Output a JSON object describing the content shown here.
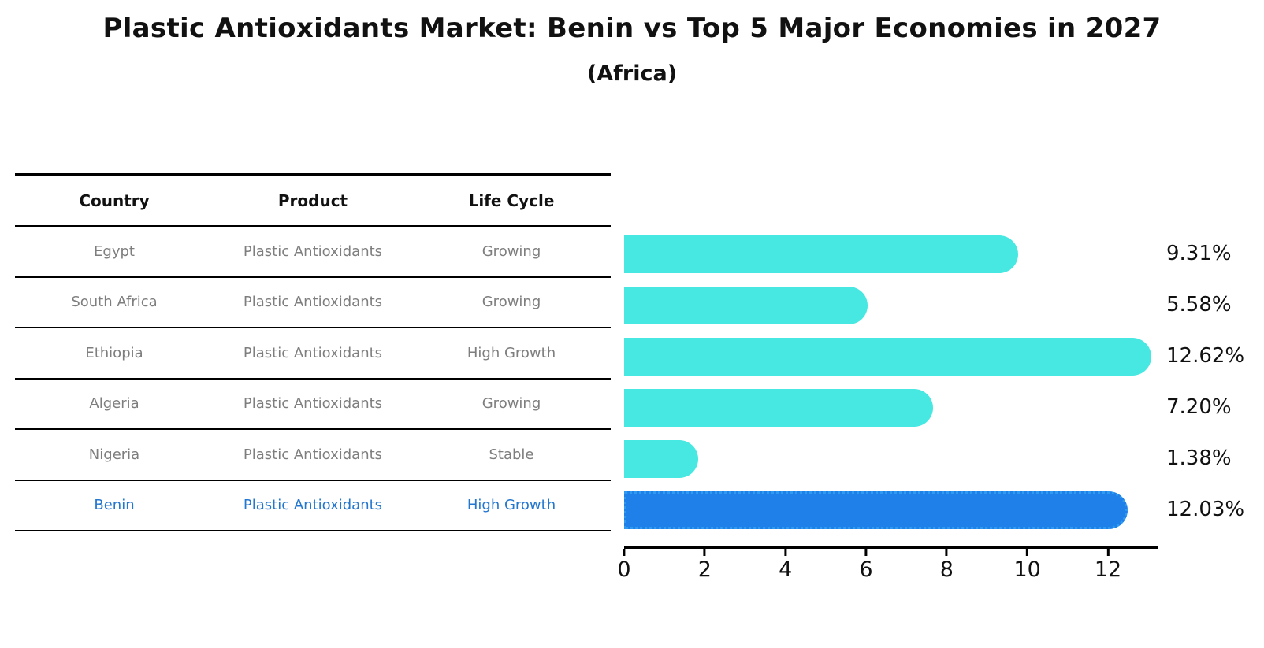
{
  "title": "Plastic Antioxidants Market: Benin vs Top 5 Major Economies in 2027",
  "subtitle": "(Africa)",
  "table": {
    "headers": [
      "Country",
      "Product",
      "Life Cycle"
    ],
    "rows": [
      {
        "country": "Egypt",
        "product": "Plastic Antioxidants",
        "life_cycle": "Growing",
        "highlight": false
      },
      {
        "country": "South Africa",
        "product": "Plastic Antioxidants",
        "life_cycle": "Growing",
        "highlight": false
      },
      {
        "country": "Ethiopia",
        "product": "Plastic Antioxidants",
        "life_cycle": "High Growth",
        "highlight": false
      },
      {
        "country": "Algeria",
        "product": "Plastic Antioxidants",
        "life_cycle": "Growing",
        "highlight": false
      },
      {
        "country": "Nigeria",
        "product": "Plastic Antioxidants",
        "life_cycle": "Stable",
        "highlight": false
      },
      {
        "country": "Benin",
        "product": "Plastic Antioxidants",
        "life_cycle": "High Growth",
        "highlight": true
      }
    ]
  },
  "chart_data": {
    "type": "bar",
    "orientation": "horizontal",
    "title": "Plastic Antioxidants Market: Benin vs Top 5 Major Economies in 2027 (Africa)",
    "categories": [
      "Egypt",
      "South Africa",
      "Ethiopia",
      "Algeria",
      "Nigeria",
      "Benin"
    ],
    "values": [
      9.31,
      5.58,
      12.62,
      7.2,
      1.38,
      12.03
    ],
    "value_labels": [
      "9.31%",
      "5.58%",
      "12.62%",
      "7.20%",
      "1.38%",
      "12.03%"
    ],
    "xlabel": "",
    "ylabel": "",
    "xlim": [
      0,
      13.25
    ],
    "xticks": [
      0,
      2,
      4,
      6,
      8,
      10,
      12
    ],
    "grid": false,
    "legend": false,
    "highlight_index": 5,
    "bar_color": "#46E8E1",
    "highlight_color": "#1E80E8",
    "highlight_border_color": "#2E9BF0",
    "row_text_color": "#7e7e7e",
    "highlight_text_color": "#2377CE",
    "axis_color": "#000000"
  }
}
